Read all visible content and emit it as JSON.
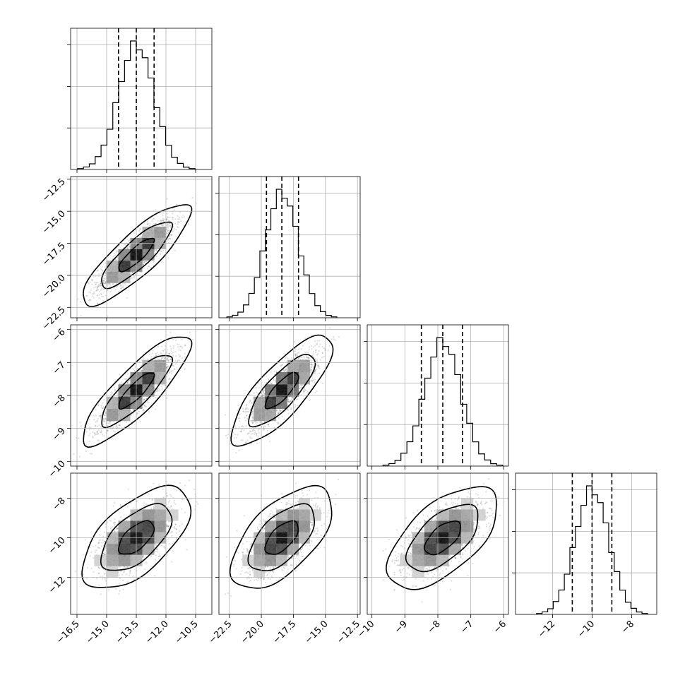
{
  "chart_data": {
    "type": "corner",
    "grid": true,
    "parameters": [
      {
        "mean": -13.5,
        "sd": 0.9,
        "range": [
          -16.75,
          -9.75
        ],
        "ticks": [
          "−16.5",
          "−15.0",
          "−13.5",
          "−12.0",
          "−10.5"
        ],
        "tick_values": [
          -16.5,
          -15.0,
          -13.5,
          -12.0,
          -10.5
        ],
        "quantiles": [
          -14.4,
          -13.5,
          -12.6
        ]
      },
      {
        "mean": -18.4,
        "sd": 1.3,
        "range": [
          -23.2,
          -12.4
        ],
        "ticks": [
          "−22.5",
          "−20.0",
          "−17.5",
          "−15.0",
          "−12.5"
        ],
        "tick_values": [
          -22.5,
          -20.0,
          -17.5,
          -15.0,
          -12.5
        ],
        "quantiles": [
          -19.6,
          -18.4,
          -17.1
        ]
      },
      {
        "mean": -7.85,
        "sd": 0.55,
        "range": [
          -10.1,
          -5.9
        ],
        "ticks": [
          "−10",
          "−9",
          "−8",
          "−7",
          "−6"
        ],
        "tick_values": [
          -10,
          -9,
          -8,
          -7,
          -6
        ],
        "quantiles": [
          -8.5,
          -7.85,
          -7.25
        ]
      },
      {
        "mean": -10.0,
        "sd": 0.85,
        "range": [
          -13.8,
          -6.8
        ],
        "ticks": [
          "−12",
          "−10",
          "−8"
        ],
        "tick_values": [
          -12,
          -10,
          -8
        ],
        "quantiles": [
          -11.0,
          -10.0,
          -9.0
        ]
      }
    ],
    "correlations": [
      {
        "pair": [
          0,
          1
        ],
        "r": 0.85
      },
      {
        "pair": [
          0,
          2
        ],
        "r": 0.85
      },
      {
        "pair": [
          1,
          2
        ],
        "r": 0.8
      },
      {
        "pair": [
          0,
          3
        ],
        "r": 0.6
      },
      {
        "pair": [
          1,
          3
        ],
        "r": 0.6
      },
      {
        "pair": [
          2,
          3
        ],
        "r": 0.6
      }
    ],
    "histogram_bins": 20,
    "contour_levels": [
      0.39,
      0.86,
      0.99
    ]
  }
}
